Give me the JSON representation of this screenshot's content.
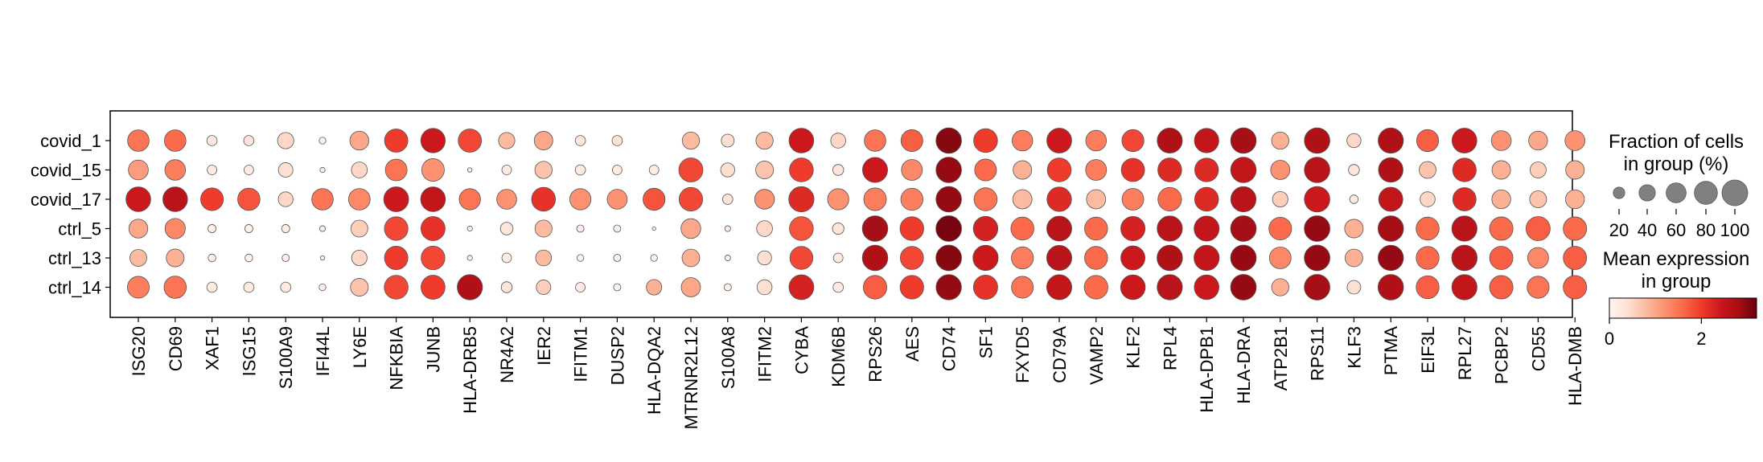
{
  "chart_data": {
    "type": "dotplot",
    "rows": [
      "covid_1",
      "covid_15",
      "covid_17",
      "ctrl_5",
      "ctrl_13",
      "ctrl_14"
    ],
    "genes": [
      "ISG20",
      "CD69",
      "XAF1",
      "ISG15",
      "S100A9",
      "IFI44L",
      "LY6E",
      "NFKBIA",
      "JUNB",
      "HLA-DRB5",
      "NR4A2",
      "IER2",
      "IFITM1",
      "DUSP2",
      "HLA-DQA2",
      "MTRNR2L12",
      "S100A8",
      "IFITM2",
      "CYBA",
      "KDM6B",
      "RPS26",
      "AES",
      "CD74",
      "SF1",
      "FXYD5",
      "CD79A",
      "VAMP2",
      "KLF2",
      "RPL4",
      "HLA-DPB1",
      "HLA-DRA",
      "ATP2B1",
      "RPS11",
      "KLF3",
      "PTMA",
      "EIF3L",
      "RPL27",
      "PCBP2",
      "CD55",
      "HLA-DMB"
    ],
    "fraction": [
      [
        70,
        70,
        16,
        16,
        40,
        7,
        54,
        82,
        90,
        82,
        40,
        52,
        16,
        16,
        0,
        45,
        25,
        45,
        92,
        34,
        70,
        72,
        98,
        86,
        64,
        93,
        64,
        73,
        95,
        90,
        98,
        45,
        98,
        30,
        96,
        73,
        93,
        60,
        54,
        60
      ],
      [
        60,
        64,
        14,
        14,
        32,
        4,
        38,
        71,
        77,
        3,
        14,
        45,
        16,
        14,
        14,
        88,
        30,
        48,
        86,
        18,
        95,
        66,
        98,
        72,
        52,
        86,
        66,
        82,
        86,
        85,
        98,
        56,
        98,
        18,
        91,
        43,
        84,
        52,
        39,
        52
      ],
      [
        92,
        92,
        78,
        75,
        33,
        70,
        70,
        93,
        92,
        68,
        60,
        86,
        68,
        60,
        73,
        84,
        16,
        59,
        96,
        68,
        77,
        74,
        98,
        80,
        56,
        90,
        56,
        71,
        84,
        86,
        96,
        36,
        98,
        11,
        88,
        34,
        82,
        54,
        43,
        54
      ],
      [
        54,
        62,
        10,
        10,
        10,
        5,
        43,
        84,
        88,
        4,
        24,
        44,
        8,
        8,
        2,
        59,
        5,
        38,
        86,
        20,
        98,
        85,
        99,
        91,
        80,
        94,
        80,
        89,
        96,
        95,
        99,
        78,
        99,
        52,
        98,
        80,
        96,
        83,
        88,
        83
      ],
      [
        43,
        48,
        9,
        9,
        8,
        3,
        36,
        83,
        85,
        4,
        14,
        38,
        7,
        8,
        7,
        47,
        5,
        30,
        80,
        14,
        98,
        81,
        99,
        96,
        73,
        95,
        80,
        88,
        98,
        96,
        99,
        71,
        99,
        47,
        97,
        79,
        98,
        82,
        66,
        82
      ],
      [
        72,
        75,
        16,
        16,
        16,
        7,
        48,
        86,
        87,
        96,
        18,
        32,
        14,
        8,
        36,
        56,
        8,
        34,
        93,
        16,
        84,
        84,
        97,
        89,
        72,
        95,
        84,
        92,
        96,
        92,
        99,
        45,
        99,
        28,
        98,
        79,
        96,
        83,
        73,
        83
      ]
    ],
    "expression": [
      [
        1.5,
        1.6,
        0.2,
        0.3,
        0.5,
        0.1,
        1.0,
        2.0,
        2.4,
        1.9,
        0.8,
        1.0,
        0.3,
        0.3,
        0.0,
        0.8,
        0.4,
        0.8,
        2.4,
        0.5,
        1.5,
        1.7,
        3.0,
        2.0,
        1.4,
        2.4,
        1.4,
        1.9,
        2.7,
        2.5,
        2.8,
        0.9,
        2.7,
        0.5,
        2.7,
        1.7,
        2.4,
        1.2,
        1.0,
        1.2
      ],
      [
        1.1,
        1.4,
        0.2,
        0.2,
        0.4,
        0.1,
        0.5,
        1.5,
        1.2,
        0.1,
        0.2,
        0.7,
        0.2,
        0.2,
        0.2,
        1.9,
        0.4,
        0.7,
        2.0,
        0.3,
        2.4,
        1.3,
        2.9,
        1.6,
        0.9,
        2.0,
        1.4,
        2.1,
        2.2,
        2.2,
        2.5,
        1.2,
        2.6,
        0.3,
        2.7,
        0.7,
        2.2,
        0.9,
        0.6,
        0.9
      ],
      [
        2.4,
        2.6,
        2.0,
        1.8,
        0.5,
        1.5,
        1.3,
        2.4,
        2.5,
        1.5,
        1.2,
        2.1,
        1.2,
        1.2,
        1.8,
        1.9,
        0.3,
        1.2,
        2.2,
        1.2,
        1.4,
        1.4,
        2.9,
        1.5,
        0.8,
        2.2,
        0.8,
        1.4,
        1.6,
        2.2,
        2.6,
        0.6,
        2.4,
        0.2,
        2.5,
        0.5,
        2.2,
        0.9,
        0.7,
        0.9
      ],
      [
        1.0,
        1.3,
        0.1,
        0.1,
        0.1,
        0.1,
        0.6,
        1.9,
        2.1,
        0.1,
        0.3,
        0.8,
        0.1,
        0.1,
        0.1,
        1.0,
        0.1,
        0.5,
        1.8,
        0.3,
        2.8,
        2.0,
        3.1,
        2.3,
        1.6,
        2.6,
        1.6,
        2.3,
        2.6,
        2.5,
        2.8,
        1.6,
        2.9,
        0.9,
        2.8,
        1.6,
        2.6,
        1.6,
        1.7,
        1.6
      ],
      [
        0.8,
        0.9,
        0.1,
        0.1,
        0.1,
        0.1,
        0.5,
        2.0,
        1.9,
        0.1,
        0.2,
        0.8,
        0.1,
        0.1,
        0.1,
        0.9,
        0.1,
        0.4,
        1.9,
        0.2,
        2.7,
        1.9,
        3.0,
        2.4,
        1.4,
        2.6,
        1.6,
        2.4,
        2.7,
        2.5,
        2.9,
        1.3,
        2.9,
        0.9,
        2.9,
        1.6,
        2.6,
        1.7,
        1.3,
        1.7
      ],
      [
        1.4,
        1.5,
        0.2,
        0.2,
        0.2,
        0.1,
        0.7,
        1.9,
        2.0,
        2.7,
        0.3,
        0.6,
        0.2,
        0.1,
        0.9,
        1.0,
        0.1,
        0.4,
        2.3,
        0.2,
        1.7,
        2.0,
        2.9,
        2.1,
        1.5,
        2.5,
        1.6,
        2.4,
        2.6,
        2.4,
        2.9,
        0.9,
        2.8,
        0.4,
        2.7,
        1.7,
        2.5,
        1.7,
        1.5,
        1.7
      ]
    ],
    "color_scale": {
      "name": "Reds",
      "range": [
        0,
        3.2
      ],
      "stops": [
        "#fff5f0",
        "#fee0d2",
        "#fcbba1",
        "#fc9272",
        "#fb6a4a",
        "#ef3b2c",
        "#cb181d",
        "#a50f15",
        "#67000d"
      ]
    },
    "size_legend": {
      "title": [
        "Fraction of cells",
        "in group (%)"
      ],
      "values": [
        20,
        40,
        60,
        80,
        100
      ]
    },
    "color_legend": {
      "title": [
        "Mean expression",
        "in group"
      ],
      "ticks": [
        0,
        2
      ]
    },
    "grid": false,
    "legend_position": "right"
  }
}
